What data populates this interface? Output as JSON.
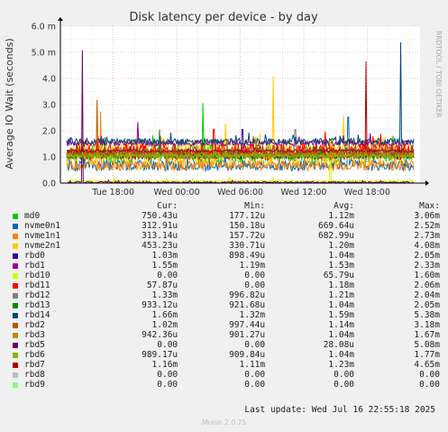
{
  "chart_data": {
    "type": "line",
    "title": "Disk latency per device - by day",
    "ylabel": "Average IO Wait (seconds)",
    "ylim": [
      0,
      6.0
    ],
    "yticks": [
      "0.0",
      "1.0",
      "2.0",
      "3.0",
      "4.0",
      "5.0 m",
      "6.0 m"
    ],
    "xticks": [
      "Tue 18:00",
      "Wed 00:00",
      "Wed 06:00",
      "Wed 12:00",
      "Wed 18:00"
    ],
    "xtick_hours": [
      18,
      24,
      30,
      36,
      42
    ],
    "x_range_hours": [
      13,
      47
    ],
    "grid": true,
    "watermark": "RRDTOOL / TOBI OETIKER",
    "series": [
      {
        "name": "md0",
        "color": "#00cc00",
        "cur": "750.43u",
        "min": "177.12u",
        "avg": "1.12m",
        "max": "3.06m",
        "base": 1.12,
        "noise": 0.35,
        "peak": 3.06
      },
      {
        "name": "nvme0n1",
        "color": "#0066b3",
        "cur": "312.91u",
        "min": "150.18u",
        "avg": "669.64u",
        "max": "2.52m",
        "base": 0.67,
        "noise": 0.2,
        "peak": 2.52
      },
      {
        "name": "nvme1n1",
        "color": "#ff8000",
        "cur": "313.14u",
        "min": "157.72u",
        "avg": "682.99u",
        "max": "2.73m",
        "base": 0.68,
        "noise": 0.2,
        "peak": 2.73
      },
      {
        "name": "nvme2n1",
        "color": "#ffcc00",
        "cur": "453.23u",
        "min": "330.71u",
        "avg": "1.20m",
        "max": "4.08m",
        "base": 1.2,
        "noise": 0.55,
        "peak": 4.08
      },
      {
        "name": "rbd0",
        "color": "#330099",
        "cur": "1.03m",
        "min": "898.49u",
        "avg": "1.04m",
        "max": "2.05m",
        "base": 1.04,
        "noise": 0.1,
        "peak": 2.05
      },
      {
        "name": "rbd1",
        "color": "#990099",
        "cur": "1.55m",
        "min": "1.19m",
        "avg": "1.53m",
        "max": "2.33m",
        "base": 1.53,
        "noise": 0.12,
        "peak": 2.33
      },
      {
        "name": "rbd10",
        "color": "#ccff00",
        "cur": "0.00",
        "min": "0.00",
        "avg": "65.79u",
        "max": "1.60m",
        "base": 0.07,
        "noise": 0.05,
        "peak": 1.6
      },
      {
        "name": "rbd11",
        "color": "#ff0000",
        "cur": "57.87u",
        "min": "0.00",
        "avg": "1.18m",
        "max": "2.06m",
        "base": 1.18,
        "noise": 0.3,
        "peak": 2.06
      },
      {
        "name": "rbd12",
        "color": "#808080",
        "cur": "1.33m",
        "min": "996.82u",
        "avg": "1.21m",
        "max": "2.04m",
        "base": 1.21,
        "noise": 0.1,
        "peak": 2.04
      },
      {
        "name": "rbd13",
        "color": "#008f00",
        "cur": "933.12u",
        "min": "921.68u",
        "avg": "1.04m",
        "max": "2.05m",
        "base": 1.04,
        "noise": 0.1,
        "peak": 2.05
      },
      {
        "name": "rbd14",
        "color": "#00487d",
        "cur": "1.66m",
        "min": "1.32m",
        "avg": "1.59m",
        "max": "5.38m",
        "base": 1.59,
        "noise": 0.12,
        "peak": 5.38
      },
      {
        "name": "rbd2",
        "color": "#b35a00",
        "cur": "1.02m",
        "min": "997.44u",
        "avg": "1.14m",
        "max": "3.18m",
        "base": 1.14,
        "noise": 0.1,
        "peak": 3.18
      },
      {
        "name": "rbd3",
        "color": "#b38f00",
        "cur": "942.36u",
        "min": "901.27u",
        "avg": "1.04m",
        "max": "1.67m",
        "base": 1.04,
        "noise": 0.08,
        "peak": 1.67
      },
      {
        "name": "rbd5",
        "color": "#6b006b",
        "cur": "0.00",
        "min": "0.00",
        "avg": "28.08u",
        "max": "5.08m",
        "base": 0.03,
        "noise": 0.03,
        "peak": 5.08
      },
      {
        "name": "rbd6",
        "color": "#8fb300",
        "cur": "989.17u",
        "min": "909.84u",
        "avg": "1.04m",
        "max": "1.77m",
        "base": 1.04,
        "noise": 0.08,
        "peak": 1.77
      },
      {
        "name": "rbd7",
        "color": "#b30000",
        "cur": "1.16m",
        "min": "1.11m",
        "avg": "1.23m",
        "max": "4.65m",
        "base": 1.23,
        "noise": 0.06,
        "peak": 4.65
      },
      {
        "name": "rbd8",
        "color": "#bebebe",
        "cur": "0.00",
        "min": "0.00",
        "avg": "0.00",
        "max": "0.00",
        "base": 0,
        "noise": 0,
        "peak": 0
      },
      {
        "name": "rbd9",
        "color": "#80ff80",
        "cur": "0.00",
        "min": "0.00",
        "avg": "0.00",
        "max": "0.00",
        "base": 0,
        "noise": 0,
        "peak": 0
      }
    ]
  },
  "legend_headers": {
    "cur": "Cur:",
    "min": "Min:",
    "avg": "Avg:",
    "max": "Max:"
  },
  "last_update": "Last update:  Wed Jul 16 22:55:18 2025",
  "footer": "Munin 2.0.75"
}
